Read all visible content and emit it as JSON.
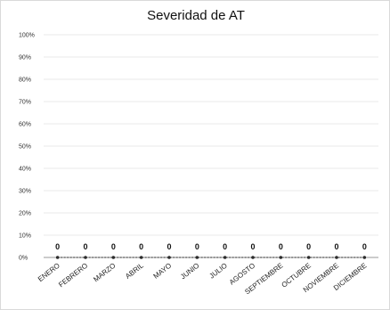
{
  "chart_data": {
    "type": "line",
    "title": "Severidad de AT",
    "categories": [
      "ENERO",
      "FEBRERO",
      "MARZO",
      "ABRIL",
      "MAYO",
      "JUNIO",
      "JULIO",
      "AGOSTO",
      "SEPTIEMBRE",
      "OCTUBRE",
      "NOVIEMBRE",
      "DICIEMBRE"
    ],
    "series": [
      {
        "values": [
          0,
          0,
          0,
          0,
          0,
          0,
          0,
          0,
          0,
          0,
          0,
          0
        ]
      }
    ],
    "data_labels": [
      "0",
      "0",
      "0",
      "0",
      "0",
      "0",
      "0",
      "0",
      "0",
      "0",
      "0",
      "0"
    ],
    "y_ticks": [
      "0%",
      "10%",
      "20%",
      "30%",
      "40%",
      "50%",
      "60%",
      "70%",
      "80%",
      "90%",
      "100%"
    ],
    "ylim": [
      0,
      1
    ],
    "xlabel": "",
    "ylabel": "",
    "grid": true,
    "legend": "none",
    "colors": {
      "line": "#2b2b2b",
      "grid": "#e3e3e3",
      "axis": "#9a9a9a"
    }
  }
}
